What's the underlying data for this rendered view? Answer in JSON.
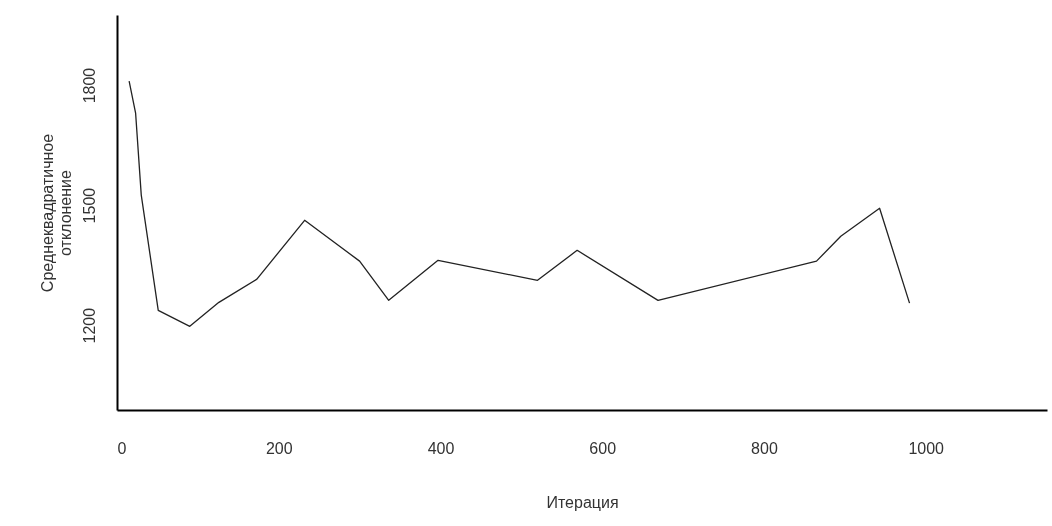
{
  "chart_data": {
    "type": "line",
    "xlabel": "Итерация",
    "ylabel": "Среднеквадратичное\nотклонение",
    "x": [
      15,
      23,
      30,
      51,
      90,
      126,
      173,
      232,
      300,
      336,
      397,
      520,
      569,
      669,
      865,
      895,
      943,
      980
    ],
    "series": [
      {
        "color": "#222222",
        "values": [
          1810,
          1730,
          1525,
          1237,
          1197,
          1257,
          1315,
          1462,
          1360,
          1262,
          1362,
          1312,
          1387,
          1262,
          1360,
          1422,
          1492,
          1255
        ]
      }
    ],
    "xlim": [
      0,
      1150
    ],
    "xticks": [
      0,
      200,
      400,
      600,
      800,
      1000
    ],
    "ylim": [
      988,
      1975
    ],
    "yticks": [
      1200,
      1500,
      1800
    ],
    "grid": false,
    "marker": "none",
    "line_style": "solid"
  }
}
